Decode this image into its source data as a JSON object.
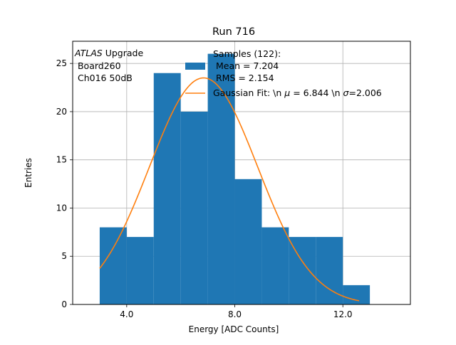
{
  "chart_data": {
    "type": "bar",
    "title": "Run 716",
    "xlabel": "Energy [ADC Counts]",
    "ylabel": "Entries",
    "xlim": [
      2.0,
      14.5
    ],
    "ylim": [
      0,
      27.3
    ],
    "x_ticks": [
      4.0,
      8.0,
      12.0
    ],
    "x_tick_labels": [
      "4.0",
      "8.0",
      "12.0"
    ],
    "y_ticks": [
      0,
      5,
      10,
      15,
      20,
      25
    ],
    "y_tick_labels": [
      "0",
      "5",
      "10",
      "15",
      "20",
      "25"
    ],
    "grid": true,
    "annotation": {
      "italic": "ATLAS",
      "line1_rest": " Upgrade",
      "line2": " Board260",
      "line3": " Ch016 50dB"
    },
    "histogram": {
      "name": "Samples (122):\n Mean = 7.204\n RMS = 2.154",
      "color": "#1f77b4",
      "bin_edges": [
        3.0,
        4.0,
        5.0,
        6.0,
        7.0,
        8.0,
        9.0,
        10.0,
        11.0,
        12.0,
        13.0
      ],
      "counts": [
        8,
        7,
        24,
        20,
        26,
        13,
        8,
        7,
        7,
        2
      ]
    },
    "fit": {
      "name": "Gaussian Fit: \\n $\\mu$ = 6.844 \\n $\\sigma$=2.006",
      "legend_text_plain": "Gaussian Fit: \\n ",
      "legend_mu": "μ",
      "legend_mid": " = 6.844 \\n ",
      "legend_sigma": "σ",
      "legend_end": "=2.006",
      "color": "#ff7f0e",
      "mu": 6.844,
      "sigma": 2.006,
      "amplitude": 23.5,
      "x_range": [
        3.0,
        12.6
      ]
    },
    "legend": {
      "placement": "upper-center",
      "hist_lines": [
        "Samples (122):",
        " Mean = 7.204",
        " RMS = 2.154"
      ]
    }
  }
}
